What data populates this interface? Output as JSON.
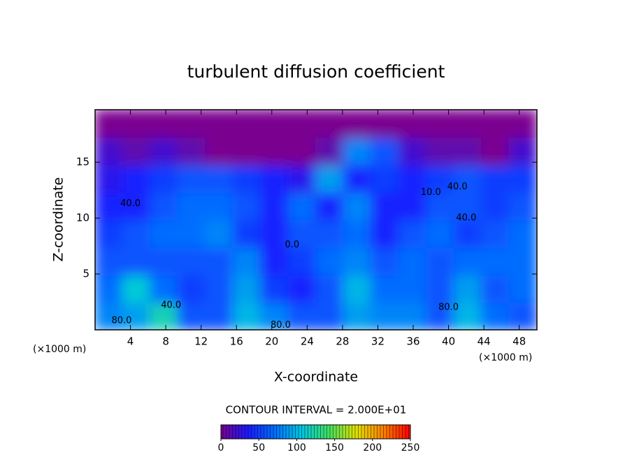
{
  "chart_data": {
    "type": "contour",
    "title": "turbulent diffusion coefficient",
    "xlabel": "X-coordinate",
    "ylabel": "Z-coordinate",
    "x_unit_label": "(×1000 m)",
    "contour_interval_label": "CONTOUR INTERVAL = 2.000E+01",
    "xlim": [
      0,
      50
    ],
    "ylim": [
      0,
      19.7
    ],
    "xticks": [
      4,
      8,
      12,
      16,
      20,
      24,
      28,
      32,
      36,
      40,
      44,
      48
    ],
    "yticks": [
      5,
      10,
      15
    ],
    "z": [
      [
        80,
        90,
        120,
        60,
        60,
        100,
        80,
        60,
        60,
        90,
        80,
        80,
        60,
        100,
        70,
        60
      ],
      [
        70,
        110,
        70,
        50,
        60,
        90,
        50,
        40,
        60,
        100,
        70,
        70,
        60,
        90,
        60,
        70
      ],
      [
        60,
        60,
        60,
        60,
        60,
        80,
        40,
        50,
        70,
        80,
        60,
        70,
        60,
        70,
        70,
        70
      ],
      [
        50,
        60,
        70,
        70,
        80,
        50,
        40,
        60,
        60,
        70,
        40,
        60,
        70,
        50,
        60,
        70
      ],
      [
        40,
        40,
        60,
        70,
        70,
        60,
        40,
        70,
        40,
        80,
        40,
        40,
        60,
        60,
        50,
        60
      ],
      [
        30,
        40,
        50,
        60,
        60,
        50,
        40,
        30,
        90,
        40,
        50,
        40,
        50,
        60,
        50,
        50
      ],
      [
        20,
        10,
        20,
        10,
        0,
        0,
        0,
        0,
        10,
        80,
        60,
        20,
        10,
        10,
        0,
        20
      ],
      [
        0,
        0,
        0,
        0,
        0,
        0,
        0,
        0,
        0,
        0,
        0,
        0,
        0,
        0,
        0,
        0
      ]
    ],
    "colors": [
      "#7a0090",
      "#1a1aff",
      "#0070ff",
      "#00c8e0",
      "#40e060",
      "#e0e000",
      "#ff8000",
      "#ff0000"
    ],
    "clim": [
      0,
      250
    ],
    "cticks": [
      0,
      50,
      100,
      150,
      200,
      250
    ],
    "annotations": [
      {
        "text": "40.0",
        "x": 8.6,
        "y": 2.2
      },
      {
        "text": "80.0",
        "x": 3,
        "y": 0.8
      },
      {
        "text": "80.0",
        "x": 21,
        "y": 0.4
      },
      {
        "text": "80.0",
        "x": 40,
        "y": 2
      },
      {
        "text": "40.0",
        "x": 42,
        "y": 10
      },
      {
        "text": "10.0",
        "x": 38,
        "y": 12.3
      },
      {
        "text": "40.0",
        "x": 41,
        "y": 12.8
      },
      {
        "text": "40.0",
        "x": 4,
        "y": 11.3
      },
      {
        "text": "0.0",
        "x": 22.3,
        "y": 7.6
      }
    ]
  }
}
